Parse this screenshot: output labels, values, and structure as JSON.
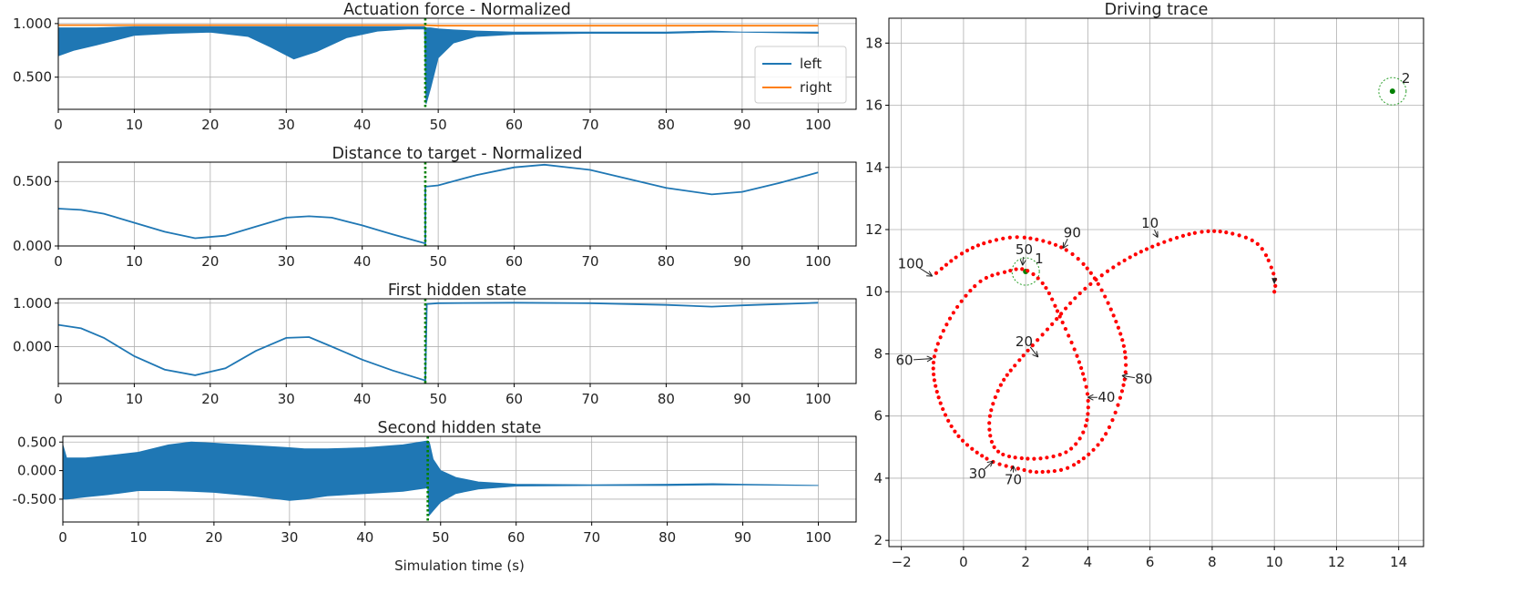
{
  "chart_data": [
    {
      "type": "line",
      "title": "Actuation force - Normalized",
      "xlim": [
        0,
        105
      ],
      "ylim": [
        0.2,
        1.05
      ],
      "xticks": [
        0,
        10,
        20,
        30,
        40,
        50,
        60,
        70,
        80,
        90,
        100
      ],
      "yticks": [
        0.5,
        1.0
      ],
      "ytick_labels": [
        "0.500",
        "1.000"
      ],
      "grid": true,
      "legend": {
        "placement": "right",
        "entries": [
          "left",
          "right"
        ]
      },
      "series": [
        {
          "name": "left",
          "color": "#1f77b4",
          "render": "band",
          "x": [
            0,
            2,
            5,
            10,
            15,
            20,
            25,
            28,
            31,
            34,
            38,
            42,
            46,
            48.2,
            48.4,
            49,
            50,
            52,
            55,
            60,
            70,
            80,
            86,
            90,
            100
          ],
          "upper": [
            0.96,
            0.96,
            0.96,
            0.97,
            0.97,
            0.97,
            0.97,
            0.97,
            0.97,
            0.97,
            0.97,
            0.97,
            0.97,
            0.97,
            0.96,
            0.96,
            0.95,
            0.94,
            0.93,
            0.92,
            0.92,
            0.92,
            0.93,
            0.92,
            0.92
          ],
          "lower": [
            0.7,
            0.75,
            0.8,
            0.89,
            0.91,
            0.92,
            0.88,
            0.78,
            0.67,
            0.74,
            0.87,
            0.93,
            0.95,
            0.95,
            0.25,
            0.4,
            0.68,
            0.82,
            0.88,
            0.9,
            0.91,
            0.91,
            0.92,
            0.92,
            0.91
          ]
        },
        {
          "name": "right",
          "color": "#ff7f0e",
          "render": "line",
          "x": [
            0,
            48,
            50,
            55,
            60,
            100
          ],
          "y": [
            0.985,
            0.985,
            0.98,
            0.98,
            0.98,
            0.98
          ]
        }
      ],
      "vline": {
        "x": 48.3,
        "color": "#008000"
      }
    },
    {
      "type": "line",
      "title": "Distance to target - Normalized",
      "xlim": [
        0,
        105
      ],
      "ylim": [
        0,
        0.65
      ],
      "xticks": [
        0,
        10,
        20,
        30,
        40,
        50,
        60,
        70,
        80,
        90,
        100
      ],
      "yticks": [
        0,
        0.5
      ],
      "ytick_labels": [
        "0.000",
        "0.500"
      ],
      "grid": true,
      "series": [
        {
          "color": "#1f77b4",
          "render": "line",
          "x": [
            0,
            3,
            6,
            10,
            14,
            18,
            22,
            26,
            30,
            33,
            36,
            40,
            44,
            48.3,
            48.3,
            50,
            55,
            60,
            64,
            70,
            75,
            80,
            86,
            90,
            95,
            100
          ],
          "y": [
            0.29,
            0.28,
            0.25,
            0.18,
            0.11,
            0.06,
            0.08,
            0.15,
            0.22,
            0.23,
            0.22,
            0.16,
            0.09,
            0.02,
            0.46,
            0.47,
            0.55,
            0.61,
            0.63,
            0.59,
            0.52,
            0.45,
            0.4,
            0.42,
            0.49,
            0.57
          ]
        }
      ],
      "vline": {
        "x": 48.3,
        "color": "#008000"
      }
    },
    {
      "type": "line",
      "title": "First hidden state",
      "xlim": [
        0,
        105
      ],
      "ylim": [
        -0.85,
        1.1
      ],
      "xticks": [
        0,
        10,
        20,
        30,
        40,
        50,
        60,
        70,
        80,
        90,
        100
      ],
      "yticks": [
        0,
        1
      ],
      "ytick_labels": [
        "0.000",
        "1.000"
      ],
      "grid": true,
      "series": [
        {
          "color": "#1f77b4",
          "render": "line",
          "x": [
            0,
            3,
            6,
            10,
            14,
            18,
            22,
            26,
            30,
            33,
            36,
            40,
            44,
            48.3,
            48.5,
            50,
            60,
            70,
            80,
            86,
            90,
            100
          ],
          "y": [
            0.5,
            0.42,
            0.2,
            -0.22,
            -0.53,
            -0.66,
            -0.5,
            -0.1,
            0.2,
            0.22,
            0.0,
            -0.3,
            -0.55,
            -0.78,
            0.98,
            1.0,
            1.01,
            1.0,
            0.96,
            0.92,
            0.95,
            1.01
          ]
        }
      ],
      "vline": {
        "x": 48.3,
        "color": "#008000"
      }
    },
    {
      "type": "line",
      "title": "Second hidden state",
      "xlabel": "Simulation time (s)",
      "xlim": [
        0,
        105
      ],
      "ylim": [
        -0.9,
        0.6
      ],
      "xticks": [
        0,
        10,
        20,
        30,
        40,
        50,
        60,
        70,
        80,
        90,
        100
      ],
      "yticks": [
        -0.5,
        0,
        0.5
      ],
      "ytick_labels": [
        "-0.500",
        "0.000",
        "0.500"
      ],
      "grid": true,
      "series": [
        {
          "color": "#1f77b4",
          "render": "band",
          "x": [
            0,
            0.5,
            3,
            6,
            10,
            14,
            17,
            20,
            25,
            30,
            32,
            35,
            40,
            45,
            48.3,
            48.5,
            49,
            50,
            52,
            55,
            60,
            70,
            80,
            86,
            90,
            100
          ],
          "upper": [
            0.45,
            0.22,
            0.22,
            0.26,
            0.32,
            0.45,
            0.5,
            0.48,
            0.44,
            0.4,
            0.38,
            0.38,
            0.4,
            0.45,
            0.52,
            0.5,
            0.2,
            0.0,
            -0.12,
            -0.2,
            -0.24,
            -0.25,
            -0.24,
            -0.23,
            -0.24,
            -0.26
          ],
          "lower": [
            -0.5,
            -0.5,
            -0.46,
            -0.42,
            -0.35,
            -0.35,
            -0.36,
            -0.38,
            -0.44,
            -0.52,
            -0.5,
            -0.44,
            -0.4,
            -0.36,
            -0.3,
            -0.78,
            -0.7,
            -0.55,
            -0.4,
            -0.32,
            -0.27,
            -0.26,
            -0.26,
            -0.25,
            -0.25,
            -0.26
          ]
        }
      ],
      "vline": {
        "x": 48.3,
        "color": "#008000"
      }
    },
    {
      "type": "scatter",
      "title": "Driving trace",
      "xlim": [
        -2.4,
        14.8
      ],
      "ylim": [
        1.8,
        18.8
      ],
      "xticks": [
        -2,
        0,
        2,
        4,
        6,
        8,
        10,
        12,
        14
      ],
      "xtick_labels": [
        "−2",
        "0",
        "2",
        "4",
        "6",
        "8",
        "10",
        "12",
        "14"
      ],
      "yticks": [
        2,
        4,
        6,
        8,
        10,
        12,
        14,
        16,
        18
      ],
      "grid": true,
      "trace_color": "#ff0000",
      "trace_points": [
        [
          10.0,
          10.0
        ],
        [
          10.0,
          10.5
        ],
        [
          9.5,
          11.5
        ],
        [
          8.5,
          11.9
        ],
        [
          7.5,
          11.9
        ],
        [
          6.2,
          11.5
        ],
        [
          5.0,
          10.9
        ],
        [
          3.8,
          10.0
        ],
        [
          2.8,
          8.9
        ],
        [
          1.8,
          7.8
        ],
        [
          1.2,
          7.0
        ],
        [
          0.85,
          6.0
        ],
        [
          0.9,
          5.2
        ],
        [
          1.2,
          4.8
        ],
        [
          1.8,
          4.65
        ],
        [
          2.6,
          4.65
        ],
        [
          3.4,
          4.9
        ],
        [
          3.9,
          5.6
        ],
        [
          4.0,
          6.6
        ],
        [
          3.7,
          7.8
        ],
        [
          3.1,
          9.2
        ],
        [
          2.6,
          10.2
        ],
        [
          2.0,
          10.7
        ],
        [
          1.4,
          10.65
        ],
        [
          0.5,
          10.3
        ],
        [
          -0.4,
          9.2
        ],
        [
          -0.95,
          7.85
        ],
        [
          -0.8,
          6.6
        ],
        [
          -0.2,
          5.4
        ],
        [
          0.8,
          4.6
        ],
        [
          1.8,
          4.3
        ],
        [
          2.5,
          4.2
        ],
        [
          3.5,
          4.4
        ],
        [
          4.5,
          5.3
        ],
        [
          5.1,
          6.8
        ],
        [
          5.2,
          8.0
        ],
        [
          4.8,
          9.3
        ],
        [
          4.1,
          10.6
        ],
        [
          3.2,
          11.4
        ],
        [
          1.9,
          11.75
        ],
        [
          0.8,
          11.6
        ],
        [
          -0.1,
          11.2
        ],
        [
          -1.0,
          10.5
        ]
      ],
      "targets": [
        {
          "label": "1",
          "x": 2.0,
          "y": 10.65
        },
        {
          "label": "2",
          "x": 13.8,
          "y": 16.45
        }
      ],
      "annotations": [
        {
          "text": "10",
          "x": 6.0,
          "y": 12.2,
          "tx": 6.25,
          "ty": 11.75
        },
        {
          "text": "20",
          "x": 1.95,
          "y": 8.4,
          "tx": 2.4,
          "ty": 7.9
        },
        {
          "text": "30",
          "x": 0.45,
          "y": 4.15,
          "tx": 0.95,
          "ty": 4.55
        },
        {
          "text": "40",
          "x": 4.6,
          "y": 6.6,
          "tx": 4.0,
          "ty": 6.6
        },
        {
          "text": "50",
          "x": 1.95,
          "y": 11.35,
          "tx": 1.9,
          "ty": 10.85
        },
        {
          "text": "60",
          "x": -1.9,
          "y": 7.8,
          "tx": -1.0,
          "ty": 7.85
        },
        {
          "text": "70",
          "x": 1.6,
          "y": 3.95,
          "tx": 1.6,
          "ty": 4.4
        },
        {
          "text": "80",
          "x": 5.8,
          "y": 7.2,
          "tx": 5.1,
          "ty": 7.3
        },
        {
          "text": "90",
          "x": 3.5,
          "y": 11.9,
          "tx": 3.2,
          "ty": 11.4
        },
        {
          "text": "100",
          "x": -1.7,
          "y": 10.9,
          "tx": -1.0,
          "ty": 10.5
        }
      ]
    }
  ]
}
